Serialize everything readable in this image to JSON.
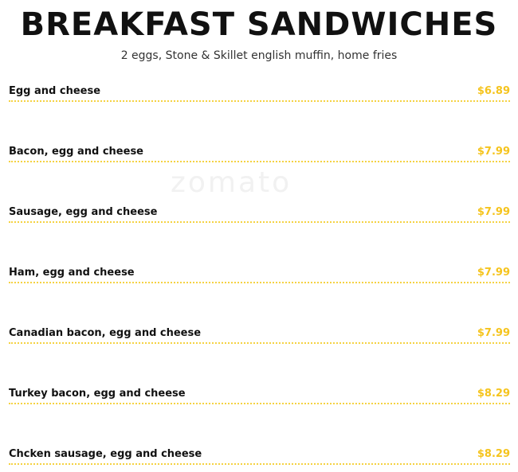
{
  "title": "BREAKFAST SANDWICHES",
  "subtitle": "2 eggs, Stone & Skillet english muffin, home fries",
  "watermark": "zomato",
  "accent_color": "#f5c41e",
  "items": [
    {
      "name": "Egg and cheese",
      "price": "$6.89"
    },
    {
      "name": "Bacon, egg and cheese",
      "price": "$7.99"
    },
    {
      "name": "Sausage, egg and cheese",
      "price": "$7.99"
    },
    {
      "name": "Ham, egg and cheese",
      "price": "$7.99"
    },
    {
      "name": "Canadian bacon, egg and cheese",
      "price": "$7.99"
    },
    {
      "name": "Turkey bacon, egg and cheese",
      "price": "$8.29"
    },
    {
      "name": "Chcken sausage, egg and cheese",
      "price": "$8.29"
    }
  ]
}
